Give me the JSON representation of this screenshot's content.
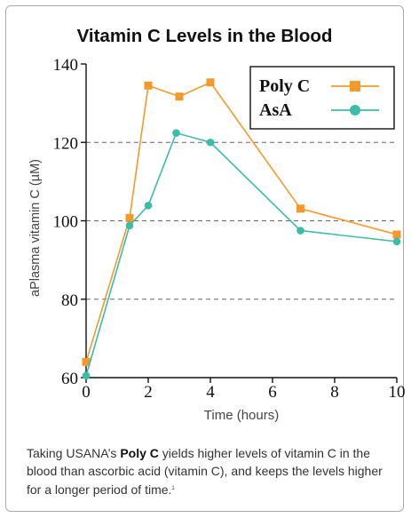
{
  "chart_data": {
    "type": "line",
    "title": "Vitamin C Levels in the Blood",
    "xlabel": "Time (hours)",
    "ylabel": "aPlasma vitamin C (µM)",
    "xlim": [
      0,
      10
    ],
    "ylim": [
      60,
      140
    ],
    "xticks": [
      0,
      2,
      4,
      6,
      8,
      10
    ],
    "yticks": [
      60,
      80,
      100,
      120,
      140
    ],
    "grid": "dashed horizontal lines at 80, 100, 120",
    "legend_position": "top-right",
    "series": [
      {
        "name": "Poly C",
        "marker": "square",
        "color": "#f39a2c",
        "points": [
          [
            0,
            64
          ],
          [
            1.4,
            100.7
          ],
          [
            2,
            134.5
          ],
          [
            3,
            131.7
          ],
          [
            4,
            135.3
          ],
          [
            6.9,
            103.1
          ],
          [
            10,
            96.5
          ]
        ]
      },
      {
        "name": "AsA",
        "marker": "circle",
        "color": "#3cbca6",
        "points": [
          [
            0,
            60.5
          ],
          [
            1.4,
            98.8
          ],
          [
            2,
            103.9
          ],
          [
            2.9,
            122.4
          ],
          [
            4,
            120
          ],
          [
            6.9,
            97.5
          ],
          [
            10,
            94.7
          ]
        ]
      }
    ]
  },
  "caption": {
    "before": "Taking USANA’s ",
    "product": "Poly C",
    "after": " yields higher levels of vitamin C in the blood than ascorbic acid (vitamin C), and keeps the levels higher for a longer period of time.",
    "footnote": "1"
  }
}
